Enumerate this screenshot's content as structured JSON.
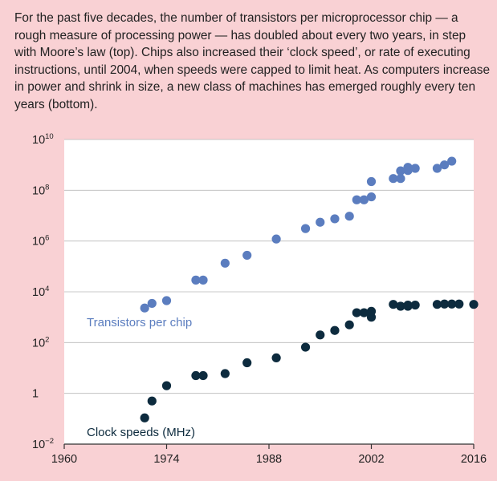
{
  "caption": "For the past five decades, the number of transistors per microprocessor chip — a rough measure of processing power — has doubled about every two years, in step with Moore’s law (top). Chips also increased their ‘clock speed’, or rate of executing instructions, until 2004, when speeds were capped to limit heat. As computers increase in power and shrink in size, a new class of machines has emerged roughly every ten years (bottom).",
  "colors": {
    "background": "#f9d1d4",
    "plot_background": "#ffffff",
    "transistors": "#5b7dbf",
    "clock": "#0d2b3e",
    "axis": "#333333"
  },
  "chart_data": {
    "type": "scatter",
    "x_scale": "linear",
    "y_scale": "log10",
    "xlim": [
      1960,
      2016
    ],
    "ylim_exponent": [
      -2,
      10
    ],
    "x_ticks": [
      {
        "value": 1960,
        "label": "1960"
      },
      {
        "value": 1974,
        "label": "1974"
      },
      {
        "value": 1988,
        "label": "1988"
      },
      {
        "value": 2002,
        "label": "2002"
      },
      {
        "value": 2016,
        "label": "2016"
      }
    ],
    "y_ticks": [
      {
        "exponent": -2,
        "base": "10",
        "sup": "−2"
      },
      {
        "exponent": 0,
        "base": "1",
        "sup": ""
      },
      {
        "exponent": 2,
        "base": "10",
        "sup": "2"
      },
      {
        "exponent": 4,
        "base": "10",
        "sup": "4"
      },
      {
        "exponent": 6,
        "base": "10",
        "sup": "6"
      },
      {
        "exponent": 8,
        "base": "10",
        "sup": "8"
      },
      {
        "exponent": 10,
        "base": "10",
        "sup": "10"
      }
    ],
    "grid": "horizontal",
    "series": [
      {
        "name": "Transistors per chip",
        "color": "#5b7dbf",
        "points": [
          [
            1971,
            2300
          ],
          [
            1972,
            3500
          ],
          [
            1974,
            4500
          ],
          [
            1978,
            29000
          ],
          [
            1979,
            29000
          ],
          [
            1982,
            134000
          ],
          [
            1985,
            275000
          ],
          [
            1989,
            1200000
          ],
          [
            1993,
            3100000
          ],
          [
            1995,
            5500000
          ],
          [
            1997,
            7500000
          ],
          [
            1999,
            9500000
          ],
          [
            2000,
            42000000
          ],
          [
            2001,
            42000000
          ],
          [
            2002,
            55000000
          ],
          [
            2002,
            220000000
          ],
          [
            2005,
            290000000
          ],
          [
            2006,
            290000000
          ],
          [
            2006,
            580000000
          ],
          [
            2007,
            800000000
          ],
          [
            2007,
            600000000
          ],
          [
            2008,
            730000000
          ],
          [
            2011,
            730000000
          ],
          [
            2012,
            1000000000
          ],
          [
            2013,
            1400000000
          ]
        ]
      },
      {
        "name": "Clock speeds (MHz)",
        "color": "#0d2b3e",
        "points": [
          [
            1971,
            0.108
          ],
          [
            1972,
            0.5
          ],
          [
            1974,
            2
          ],
          [
            1978,
            5
          ],
          [
            1979,
            5
          ],
          [
            1982,
            6
          ],
          [
            1985,
            16
          ],
          [
            1989,
            25
          ],
          [
            1993,
            66
          ],
          [
            1995,
            200
          ],
          [
            1997,
            300
          ],
          [
            1999,
            500
          ],
          [
            2000,
            1500
          ],
          [
            2001,
            1500
          ],
          [
            2002,
            1000
          ],
          [
            2002,
            1700
          ],
          [
            2005,
            3200
          ],
          [
            2006,
            2700
          ],
          [
            2007,
            2700
          ],
          [
            2007,
            3000
          ],
          [
            2008,
            3000
          ],
          [
            2011,
            3200
          ],
          [
            2012,
            3300
          ],
          [
            2013,
            3300
          ],
          [
            2014,
            3300
          ],
          [
            2016,
            3200
          ]
        ]
      }
    ]
  }
}
